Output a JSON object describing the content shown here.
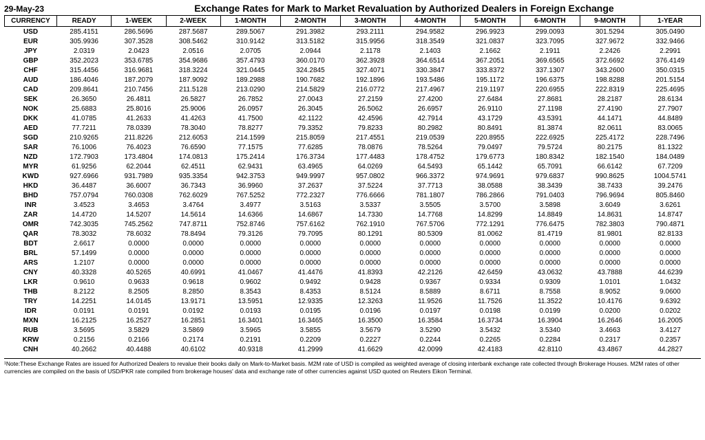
{
  "date": "29-May-23",
  "title": "Exchange Rates for Mark to Market Revaluation by Authorized Dealers in Foreign Exchange",
  "columns": [
    "CURRENCY",
    "READY",
    "1-WEEK",
    "2-WEEK",
    "1-MONTH",
    "2-MONTH",
    "3-MONTH",
    "4-MONTH",
    "5-MONTH",
    "6-MONTH",
    "9-MONTH",
    "1-YEAR"
  ],
  "rows": [
    [
      "USD",
      "285.4151",
      "286.5696",
      "287.5687",
      "289.5067",
      "291.3982",
      "293.2111",
      "294.9582",
      "296.9923",
      "299.0093",
      "301.5294",
      "305.0490"
    ],
    [
      "EUR",
      "305.9936",
      "307.3528",
      "308.5462",
      "310.9142",
      "313.5182",
      "315.9956",
      "318.3549",
      "321.0837",
      "323.7095",
      "327.9672",
      "332.9466"
    ],
    [
      "JPY",
      "2.0319",
      "2.0423",
      "2.0516",
      "2.0705",
      "2.0944",
      "2.1178",
      "2.1403",
      "2.1662",
      "2.1911",
      "2.2426",
      "2.2991"
    ],
    [
      "GBP",
      "352.2023",
      "353.6785",
      "354.9686",
      "357.4793",
      "360.0170",
      "362.3928",
      "364.6514",
      "367.2051",
      "369.6565",
      "372.6692",
      "376.4149"
    ],
    [
      "CHF",
      "315.4456",
      "316.9681",
      "318.3224",
      "321.0445",
      "324.2845",
      "327.4071",
      "330.3847",
      "333.8372",
      "337.1307",
      "343.2600",
      "350.0315"
    ],
    [
      "AUD",
      "186.4046",
      "187.2079",
      "187.9092",
      "189.2988",
      "190.7682",
      "192.1896",
      "193.5486",
      "195.1172",
      "196.6375",
      "198.8288",
      "201.5154"
    ],
    [
      "CAD",
      "209.8641",
      "210.7456",
      "211.5128",
      "213.0290",
      "214.5829",
      "216.0772",
      "217.4967",
      "219.1197",
      "220.6955",
      "222.8319",
      "225.4695"
    ],
    [
      "SEK",
      "26.3650",
      "26.4811",
      "26.5827",
      "26.7852",
      "27.0043",
      "27.2159",
      "27.4200",
      "27.6484",
      "27.8681",
      "28.2187",
      "28.6134"
    ],
    [
      "NOK",
      "25.6883",
      "25.8016",
      "25.9006",
      "26.0957",
      "26.3045",
      "26.5062",
      "26.6957",
      "26.9110",
      "27.1198",
      "27.4190",
      "27.7907"
    ],
    [
      "DKK",
      "41.0785",
      "41.2633",
      "41.4263",
      "41.7500",
      "42.1122",
      "42.4596",
      "42.7914",
      "43.1729",
      "43.5391",
      "44.1471",
      "44.8489"
    ],
    [
      "AED",
      "77.7211",
      "78.0339",
      "78.3040",
      "78.8277",
      "79.3352",
      "79.8233",
      "80.2982",
      "80.8491",
      "81.3874",
      "82.0611",
      "83.0065"
    ],
    [
      "SGD",
      "210.9265",
      "211.8226",
      "212.6053",
      "214.1599",
      "215.8059",
      "217.4551",
      "219.0539",
      "220.8955",
      "222.6925",
      "225.4172",
      "228.7496"
    ],
    [
      "SAR",
      "76.1006",
      "76.4023",
      "76.6590",
      "77.1575",
      "77.6285",
      "78.0876",
      "78.5264",
      "79.0497",
      "79.5724",
      "80.2175",
      "81.1322"
    ],
    [
      "NZD",
      "172.7903",
      "173.4804",
      "174.0813",
      "175.2414",
      "176.3734",
      "177.4483",
      "178.4752",
      "179.6773",
      "180.8342",
      "182.1540",
      "184.0489"
    ],
    [
      "MYR",
      "61.9256",
      "62.2044",
      "62.4511",
      "62.9431",
      "63.4965",
      "64.0269",
      "64.5493",
      "65.1442",
      "65.7091",
      "66.6142",
      "67.7209"
    ],
    [
      "KWD",
      "927.6966",
      "931.7989",
      "935.3354",
      "942.3753",
      "949.9997",
      "957.0802",
      "966.3372",
      "974.9691",
      "979.6837",
      "990.8625",
      "1004.5741"
    ],
    [
      "HKD",
      "36.4487",
      "36.6007",
      "36.7343",
      "36.9960",
      "37.2637",
      "37.5224",
      "37.7713",
      "38.0588",
      "38.3439",
      "38.7433",
      "39.2476"
    ],
    [
      "BHD",
      "757.0794",
      "760.0308",
      "762.6029",
      "767.5252",
      "772.2327",
      "776.6666",
      "781.1807",
      "786.2866",
      "791.0403",
      "796.9694",
      "805.8460"
    ],
    [
      "INR",
      "3.4523",
      "3.4653",
      "3.4764",
      "3.4977",
      "3.5163",
      "3.5337",
      "3.5505",
      "3.5700",
      "3.5898",
      "3.6049",
      "3.6261"
    ],
    [
      "ZAR",
      "14.4720",
      "14.5207",
      "14.5614",
      "14.6366",
      "14.6867",
      "14.7330",
      "14.7768",
      "14.8299",
      "14.8849",
      "14.8631",
      "14.8747"
    ],
    [
      "OMR",
      "742.3035",
      "745.2562",
      "747.8711",
      "752.8746",
      "757.6162",
      "762.1910",
      "767.5706",
      "772.1291",
      "776.6475",
      "782.3803",
      "790.4871"
    ],
    [
      "QAR",
      "78.3032",
      "78.6032",
      "78.8494",
      "79.3126",
      "79.7095",
      "80.1291",
      "80.5309",
      "81.0062",
      "81.4719",
      "81.9801",
      "82.8133"
    ],
    [
      "BDT",
      "2.6617",
      "0.0000",
      "0.0000",
      "0.0000",
      "0.0000",
      "0.0000",
      "0.0000",
      "0.0000",
      "0.0000",
      "0.0000",
      "0.0000"
    ],
    [
      "BRL",
      "57.1499",
      "0.0000",
      "0.0000",
      "0.0000",
      "0.0000",
      "0.0000",
      "0.0000",
      "0.0000",
      "0.0000",
      "0.0000",
      "0.0000"
    ],
    [
      "ARS",
      "1.2107",
      "0.0000",
      "0.0000",
      "0.0000",
      "0.0000",
      "0.0000",
      "0.0000",
      "0.0000",
      "0.0000",
      "0.0000",
      "0.0000"
    ],
    [
      "CNY",
      "40.3328",
      "40.5265",
      "40.6991",
      "41.0467",
      "41.4476",
      "41.8393",
      "42.2126",
      "42.6459",
      "43.0632",
      "43.7888",
      "44.6239"
    ],
    [
      "LKR",
      "0.9610",
      "0.9633",
      "0.9618",
      "0.9602",
      "0.9492",
      "0.9428",
      "0.9367",
      "0.9334",
      "0.9309",
      "1.0101",
      "1.0432"
    ],
    [
      "THB",
      "8.2122",
      "8.2505",
      "8.2850",
      "8.3543",
      "8.4353",
      "8.5124",
      "8.5889",
      "8.6711",
      "8.7558",
      "8.9052",
      "9.0600"
    ],
    [
      "TRY",
      "14.2251",
      "14.0145",
      "13.9171",
      "13.5951",
      "12.9335",
      "12.3263",
      "11.9526",
      "11.7526",
      "11.3522",
      "10.4176",
      "9.6392"
    ],
    [
      "IDR",
      "0.0191",
      "0.0191",
      "0.0192",
      "0.0193",
      "0.0195",
      "0.0196",
      "0.0197",
      "0.0198",
      "0.0199",
      "0.0200",
      "0.0202"
    ],
    [
      "MXN",
      "16.2125",
      "16.2527",
      "16.2851",
      "16.3401",
      "16.3465",
      "16.3500",
      "16.3584",
      "16.3734",
      "16.3904",
      "16.2646",
      "16.2005"
    ],
    [
      "RUB",
      "3.5695",
      "3.5829",
      "3.5869",
      "3.5965",
      "3.5855",
      "3.5679",
      "3.5290",
      "3.5432",
      "3.5340",
      "3.4663",
      "3.4127"
    ],
    [
      "KRW",
      "0.2156",
      "0.2166",
      "0.2174",
      "0.2191",
      "0.2209",
      "0.2227",
      "0.2244",
      "0.2265",
      "0.2284",
      "0.2317",
      "0.2357"
    ],
    [
      "CNH",
      "40.2662",
      "40.4488",
      "40.6102",
      "40.9318",
      "41.2999",
      "41.6629",
      "42.0099",
      "42.4183",
      "42.8110",
      "43.4867",
      "44.2827"
    ]
  ],
  "footnote": "¹Note:These Exchange Rates are issued for Authorized Dealers to revalue their books daily on Mark-to-Market basis. M2M rate of USD is compiled as weighted average of closing interbank exchange rate collected through Brokerage Houses. M2M rates of other currencies are compiled on the basis of USD/PKR rate compiled from brokerage houses' data and exchange rate of other currencies against USD quoted on Reuters Eikon Terminal."
}
